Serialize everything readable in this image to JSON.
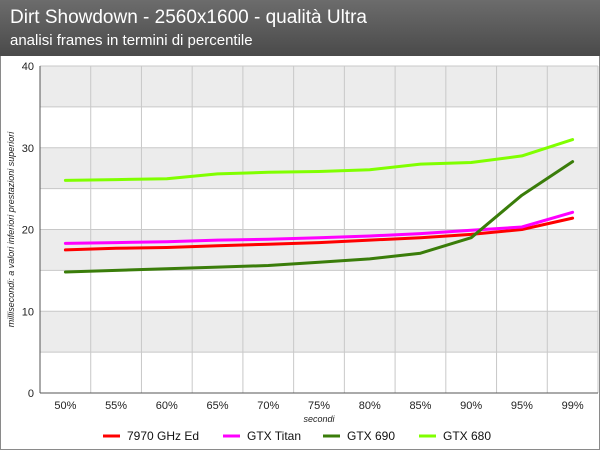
{
  "chart_data": {
    "type": "line",
    "title": "Dirt Showdown - 2560x1600 - qualità Ultra",
    "subtitle": "analisi frames in termini di percentile",
    "xlabel": "secondi",
    "ylabel": "millisecondi: a valori inferiori prestazioni superiori",
    "categories": [
      "50%",
      "55%",
      "60%",
      "65%",
      "70%",
      "75%",
      "80%",
      "85%",
      "90%",
      "95%",
      "99%"
    ],
    "ylim": [
      0,
      40
    ],
    "yticks": [
      0,
      10,
      20,
      30,
      40
    ],
    "grid": true,
    "legend_position": "bottom",
    "series": [
      {
        "name": "7970 GHz Ed",
        "color": "#ff0000",
        "values": [
          17.5,
          17.7,
          17.8,
          18.0,
          18.2,
          18.4,
          18.7,
          19.0,
          19.4,
          20.0,
          21.4
        ]
      },
      {
        "name": "GTX Titan",
        "color": "#ff00ff",
        "values": [
          18.3,
          18.4,
          18.5,
          18.7,
          18.8,
          19.0,
          19.2,
          19.5,
          19.9,
          20.3,
          22.1
        ]
      },
      {
        "name": "GTX 690",
        "color": "#3a7d0a",
        "values": [
          14.8,
          15.0,
          15.2,
          15.4,
          15.6,
          16.0,
          16.4,
          17.1,
          19.0,
          24.2,
          28.3
        ]
      },
      {
        "name": "GTX 680",
        "color": "#80ff00",
        "values": [
          26.0,
          26.1,
          26.2,
          26.8,
          27.0,
          27.1,
          27.3,
          28.0,
          28.2,
          29.0,
          31.0
        ]
      }
    ]
  }
}
